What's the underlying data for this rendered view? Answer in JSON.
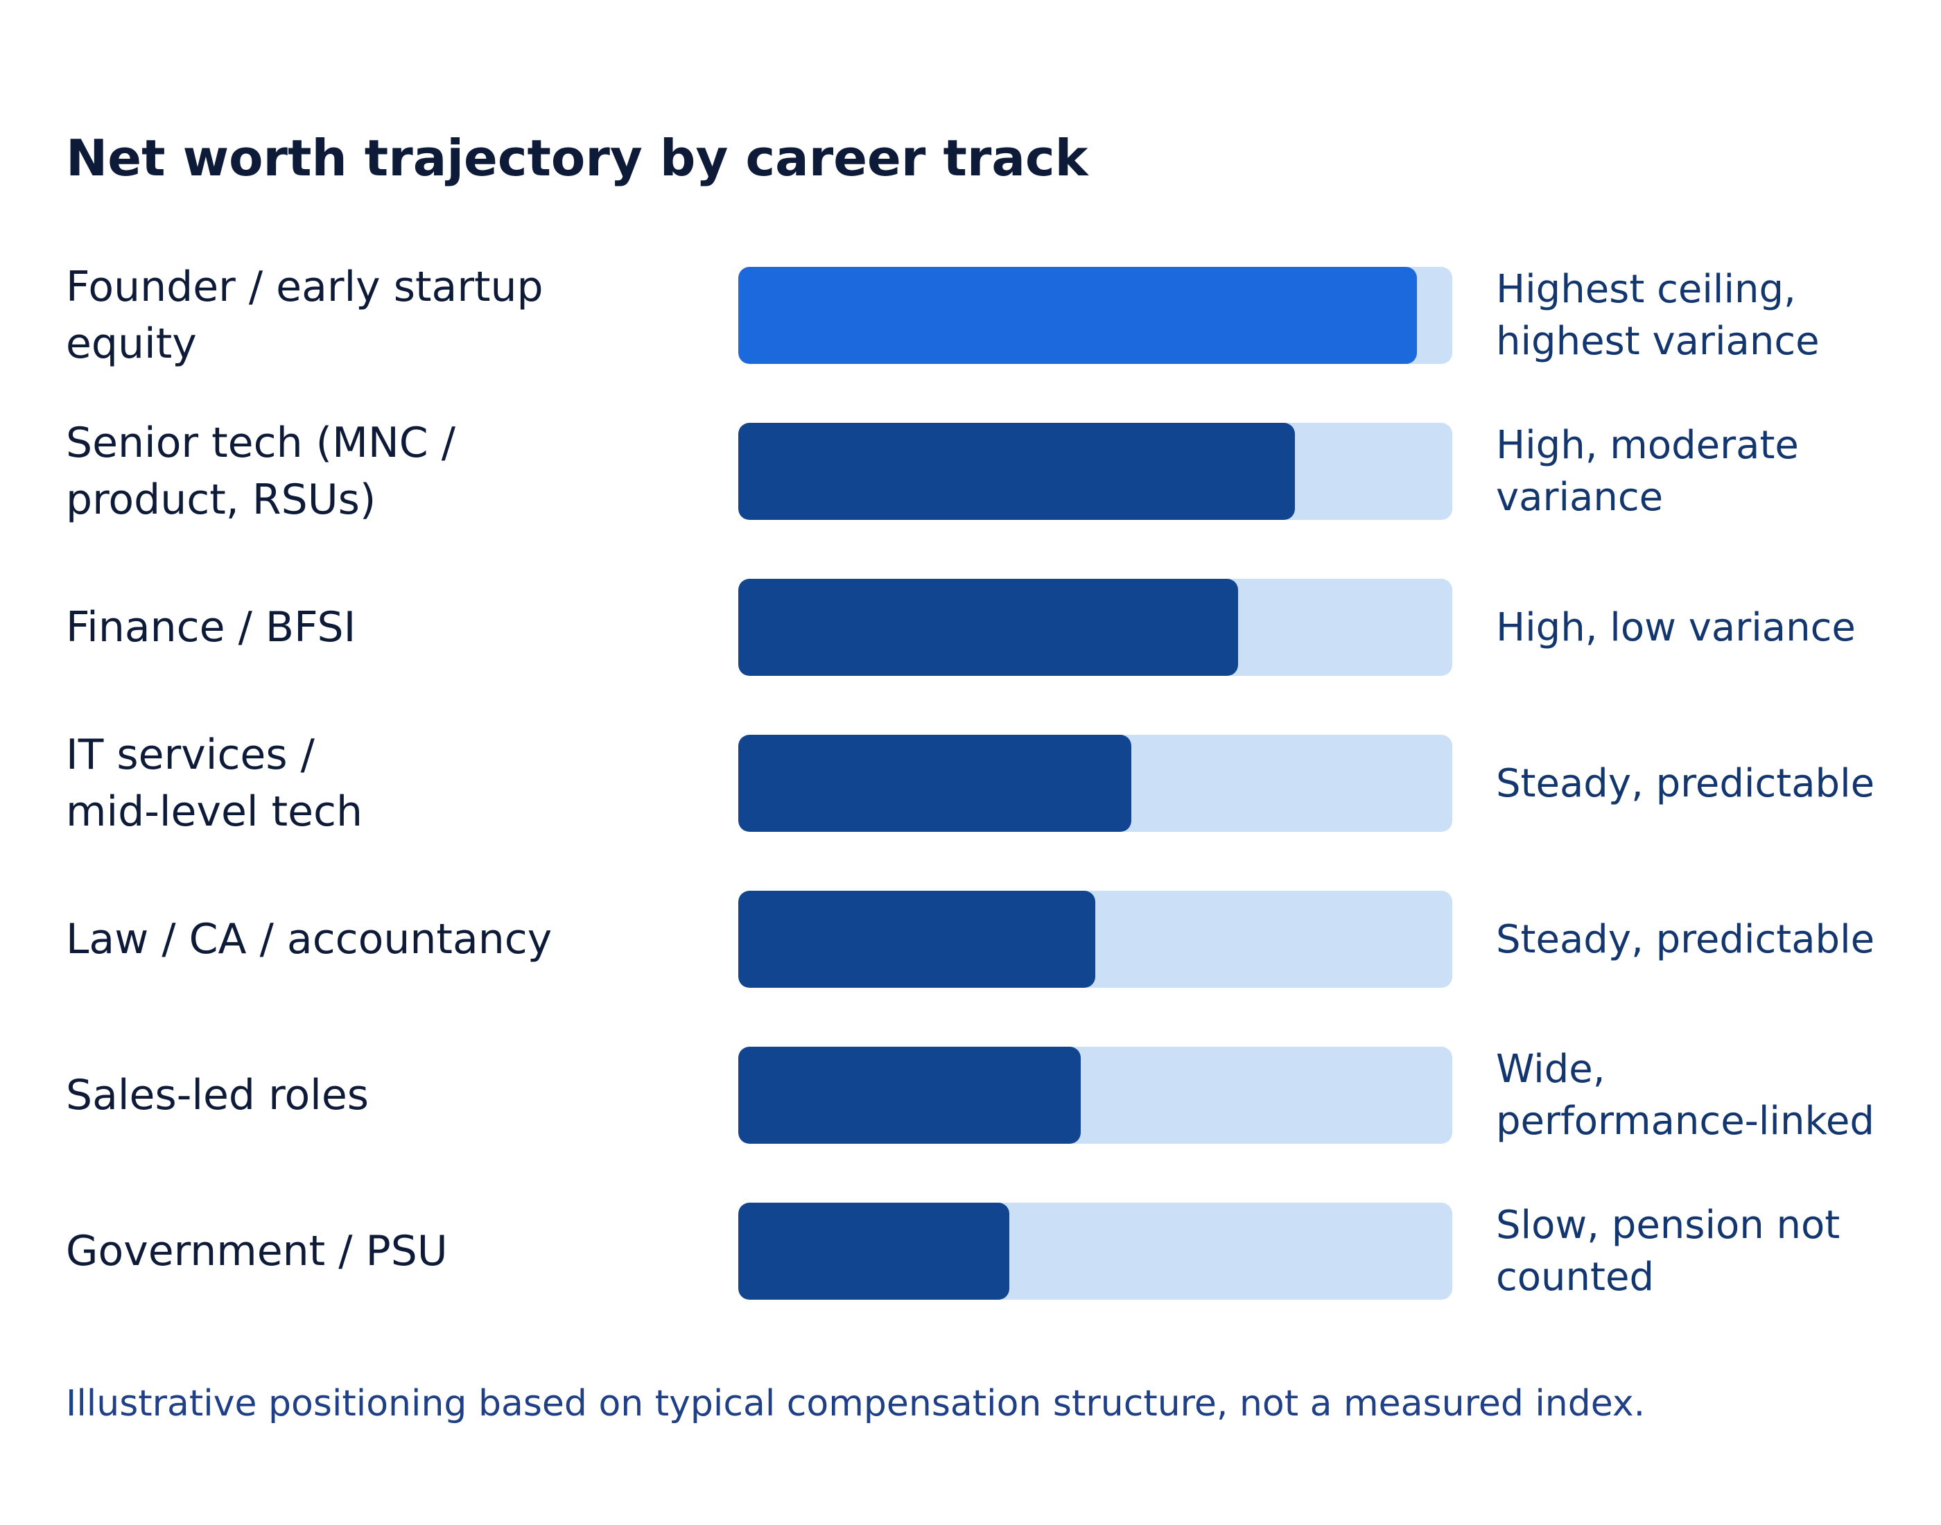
{
  "chart_data": {
    "type": "bar",
    "orientation": "horizontal",
    "title": "Net worth trajectory by career track",
    "categories": [
      "Founder / early startup\nequity",
      "Senior tech (MNC /\nproduct, RSUs)",
      "Finance / BFSI",
      "IT services /\nmid-level tech",
      "Law / CA / accountancy",
      "Sales-led roles",
      "Government / PSU"
    ],
    "values": [
      0.95,
      0.78,
      0.7,
      0.55,
      0.5,
      0.48,
      0.38
    ],
    "annotations": [
      "Highest ceiling,\nhighest variance",
      "High, moderate\nvariance",
      "High, low variance",
      "Steady, predictable",
      "Steady, predictable",
      "Wide,\nperformance-linked",
      "Slow, pension not\ncounted"
    ],
    "xlim": [
      0,
      1
    ],
    "grid": false,
    "legend": "none",
    "highlight_index": 0,
    "colors": {
      "track": "#cbdff7",
      "bar": "#114590",
      "highlight": "#1b69dc"
    },
    "footnote": "Illustrative positioning based on typical compensation structure, not a measured index."
  }
}
